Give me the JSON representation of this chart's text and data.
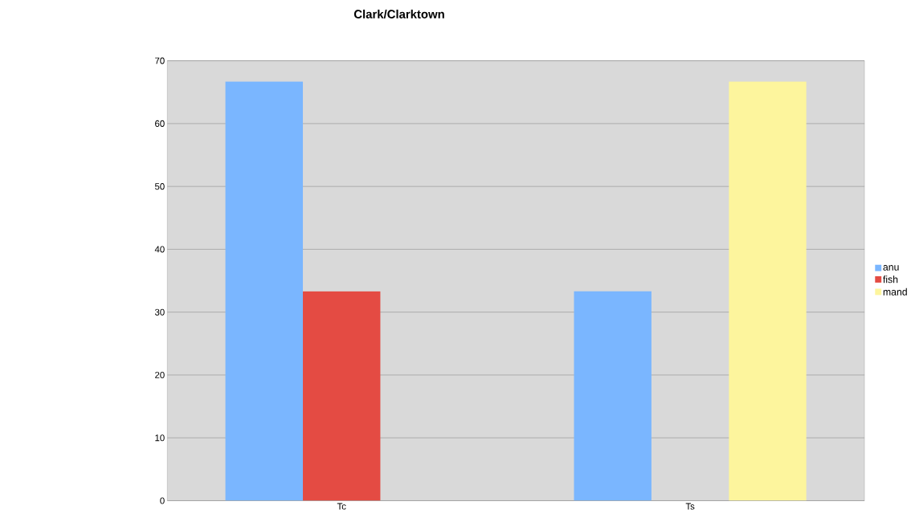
{
  "chart_data": {
    "type": "bar",
    "title": "Clark/Clarktown",
    "categories": [
      "Tc",
      "Ts"
    ],
    "series": [
      {
        "name": "anu",
        "color": "#7ab6ff",
        "values": [
          66.7,
          33.3
        ]
      },
      {
        "name": "fish",
        "color": "#e44b43",
        "values": [
          33.3,
          0
        ]
      },
      {
        "name": "mand",
        "color": "#fdf59d",
        "values": [
          0,
          66.7
        ]
      }
    ],
    "ylim": [
      0,
      70
    ],
    "yticks": [
      0,
      10,
      20,
      30,
      40,
      50,
      60,
      70
    ],
    "grid": "y",
    "legend": "right"
  }
}
